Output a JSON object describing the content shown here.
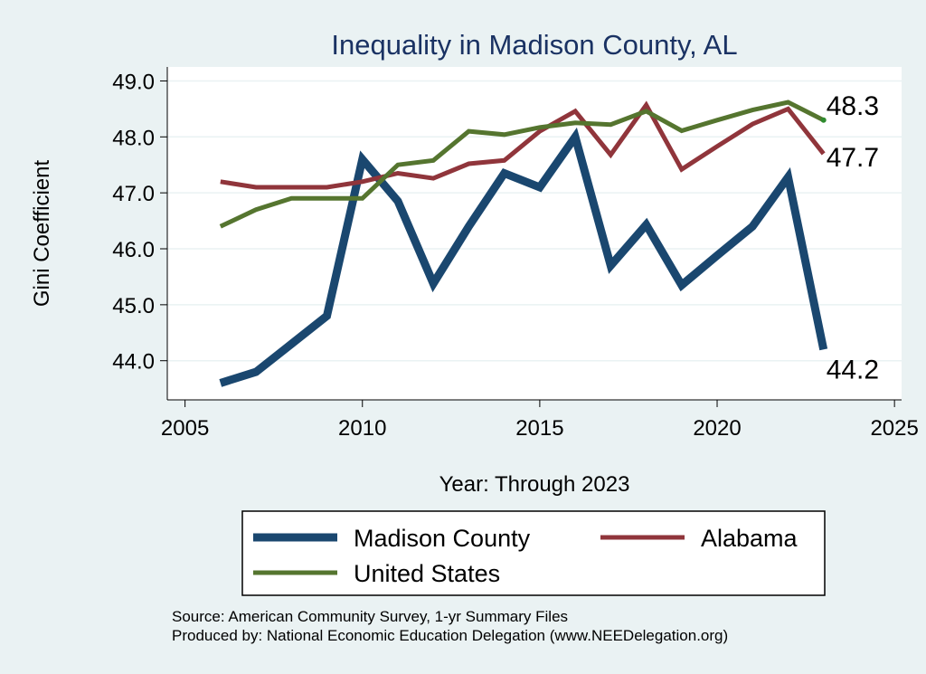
{
  "chart_data": {
    "type": "line",
    "title": "Inequality in Madison County, AL",
    "xlabel": "Year: Through 2023",
    "ylabel": "Gini Coefficient",
    "xlim": [
      2004.5,
      2025.2
    ],
    "ylim": [
      43.3,
      49.25
    ],
    "x_ticks": [
      2005,
      2010,
      2015,
      2020,
      2025
    ],
    "y_ticks": [
      {
        "value": 44,
        "label": "44.0"
      },
      {
        "value": 45,
        "label": "45.0"
      },
      {
        "value": 46,
        "label": "46.0"
      },
      {
        "value": 47,
        "label": "47.0"
      },
      {
        "value": 48,
        "label": "48.0"
      },
      {
        "value": 49,
        "label": "49.0"
      }
    ],
    "grid": true,
    "legend_position": "bottom",
    "x": [
      2006,
      2007,
      2008,
      2009,
      2010,
      2011,
      2012,
      2013,
      2014,
      2015,
      2016,
      2017,
      2018,
      2019,
      2020,
      2021,
      2022,
      2023
    ],
    "series": [
      {
        "name": "Madison County",
        "color": "#1a476f",
        "width": 9,
        "values": [
          43.6,
          43.8,
          44.3,
          44.8,
          47.6,
          46.85,
          45.38,
          46.4,
          47.35,
          47.1,
          48.0,
          45.7,
          46.43,
          45.35,
          45.88,
          46.4,
          47.28,
          44.2
        ],
        "end_label": "44.2"
      },
      {
        "name": "Alabama",
        "color": "#90353b",
        "width": 5,
        "values": [
          47.2,
          47.1,
          47.1,
          47.1,
          47.2,
          47.35,
          47.26,
          47.52,
          47.58,
          48.1,
          48.46,
          47.68,
          48.57,
          47.42,
          47.83,
          48.23,
          48.5,
          47.7
        ],
        "end_label": "47.7"
      },
      {
        "name": "United States",
        "color": "#55752f",
        "width": 5,
        "values": [
          46.4,
          46.7,
          46.9,
          46.9,
          46.9,
          47.5,
          47.58,
          48.1,
          48.04,
          48.17,
          48.25,
          48.22,
          48.46,
          48.11,
          48.3,
          48.48,
          48.62,
          48.3
        ],
        "end_label": "48.3"
      }
    ]
  },
  "colors": {
    "background": "#eaf2f3",
    "plot_background": "#ffffff",
    "title": "#1a3263",
    "grid": "#eaf2f3"
  },
  "source": {
    "line1": "Source: American Community Survey, 1-yr Summary Files",
    "line2": "Produced by: National Economic Education Delegation (www.NEEDelegation.org)"
  }
}
